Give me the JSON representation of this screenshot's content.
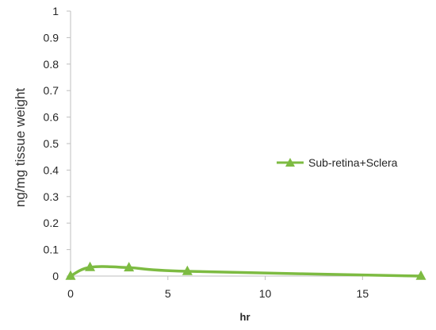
{
  "chart_data": {
    "type": "line",
    "title": "",
    "xlabel": "hr",
    "ylabel": "ng/mg tissue weight",
    "xlim": [
      0,
      18
    ],
    "ylim": [
      0,
      1
    ],
    "x_ticks": [
      "0",
      "5",
      "10",
      "15"
    ],
    "y_ticks": [
      "0",
      "0.1",
      "0.2",
      "0.3",
      "0.4",
      "0.5",
      "0.6",
      "0.7",
      "0.8",
      "0.9",
      "1"
    ],
    "grid": false,
    "legend_position": "right",
    "series": [
      {
        "name": "Sub-retina+Sclera",
        "color": "#7dbb42",
        "marker": "triangle",
        "x": [
          0,
          1,
          3,
          6,
          18
        ],
        "y": [
          0.0,
          0.033,
          0.032,
          0.018,
          0.0
        ]
      }
    ]
  }
}
